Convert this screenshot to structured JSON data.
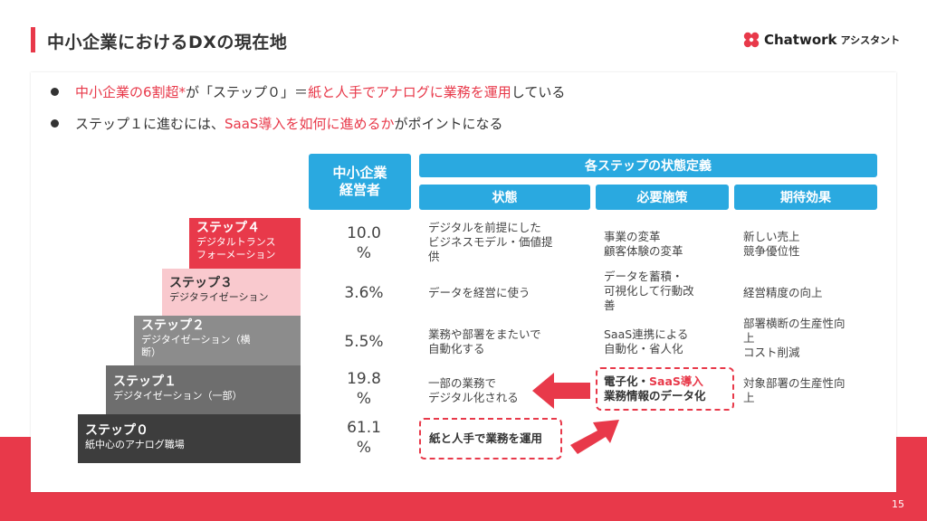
{
  "slide": {
    "title": "中小企業におけるDXの現在地",
    "page_number": "15"
  },
  "logo": {
    "name": "Chatwork",
    "sub": "アシスタント"
  },
  "bullets": {
    "b1": {
      "red": "中小企業の6割超*",
      "text1": "が「ステップ０」＝",
      "red2": "紙と人手でアナログに業務を運用",
      "text2": "している"
    },
    "b2": {
      "text1": "ステップ１に進むには、",
      "red": "SaaS導入を如何に進めるか",
      "text2": "がポイントになる"
    }
  },
  "headers": {
    "manager": "中小企業\n経営者",
    "definition": "各ステップの状態定義",
    "state": "状態",
    "measures": "必要施策",
    "effect": "期待効果"
  },
  "steps": [
    {
      "name": "ステップ４",
      "desc": "デジタルトランス\nフォーメーション",
      "pct": "10.0\n%",
      "state": "デジタルを前提にした\nビジネスモデル・価値提\n供",
      "measure": "事業の変革\n顧客体験の変革",
      "effect": "新しい売上\n競争優位性",
      "color": "#e8394a"
    },
    {
      "name": "ステップ３",
      "desc": "デジタライゼーション",
      "pct": "3.6%",
      "state": "データを経営に使う",
      "measure": "データを蓄積・\n可視化して行動改\n善",
      "effect": "経営精度の向上",
      "color": "#f9c9ce"
    },
    {
      "name": "ステップ２",
      "desc": "デジタイゼーション（横\n断）",
      "pct": "5.5%",
      "state": "業務や部署をまたいで\n自動化する",
      "measure": "SaaS連携による\n自動化・省人化",
      "effect": "部署横断の生産性向\n上\nコスト削減",
      "color": "#8c8c8c"
    },
    {
      "name": "ステップ１",
      "desc": "デジタイゼーション（一部）",
      "pct": "19.8\n%",
      "state": "一部の業務で\nデジタル化される",
      "measure_red1": "電子化・",
      "measure_red2": "SaaS導入",
      "measure2": "業務情報のデータ化",
      "effect": "対象部署の生産性向\n上",
      "color": "#6e6e6e"
    },
    {
      "name": "ステップ０",
      "desc": "紙中心のアナログ職場",
      "pct": "61.1\n%",
      "state": "紙と人手で業務を運用",
      "color": "#3d3d3d"
    }
  ],
  "colors": {
    "accent": "#e8394a",
    "blue": "#2aa9e0"
  }
}
